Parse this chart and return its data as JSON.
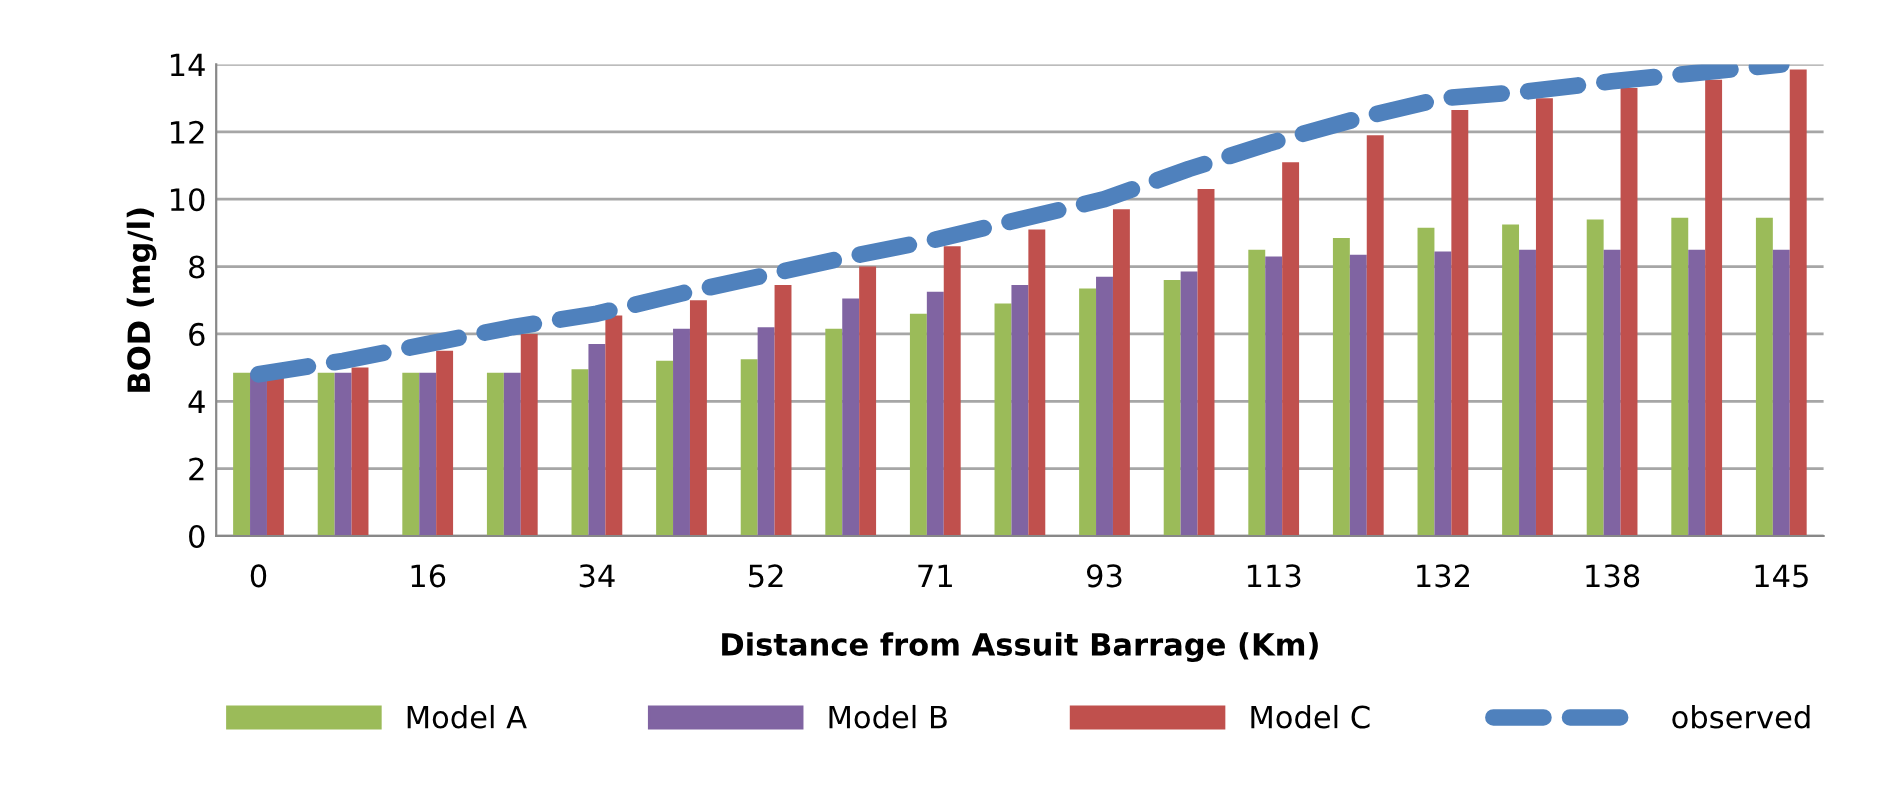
{
  "chart_data": {
    "type": "bar",
    "xlabel": "Distance from Assuit Barrage (Km)",
    "ylabel": "BOD (mg/l)",
    "categories": [
      "0",
      null,
      "16",
      null,
      "34",
      null,
      "52",
      null,
      "71",
      null,
      "93",
      null,
      "113",
      null,
      "132",
      null,
      "138",
      null,
      "145"
    ],
    "series": [
      {
        "name": "Model A",
        "color": "#9bbb59",
        "values": [
          4.85,
          4.85,
          4.85,
          4.85,
          4.95,
          5.2,
          5.25,
          6.15,
          6.6,
          6.9,
          7.35,
          7.6,
          8.5,
          8.85,
          9.15,
          9.25,
          9.4,
          9.45,
          9.45
        ]
      },
      {
        "name": "Model B",
        "color": "#8064a2",
        "values": [
          4.85,
          4.85,
          4.85,
          4.85,
          5.7,
          6.15,
          6.2,
          7.05,
          7.25,
          7.45,
          7.7,
          7.85,
          8.3,
          8.35,
          8.45,
          8.5,
          8.5,
          8.5,
          8.5
        ]
      },
      {
        "name": "Model C",
        "color": "#c0504d",
        "values": [
          4.7,
          5.0,
          5.5,
          6.0,
          6.55,
          7.0,
          7.45,
          8.0,
          8.6,
          9.1,
          9.7,
          10.3,
          11.1,
          11.9,
          12.65,
          13.0,
          13.3,
          13.55,
          13.85
        ]
      },
      {
        "name": "observed",
        "color": "#4f81bd",
        "type": "line",
        "line_style": "dashed",
        "values": [
          4.8,
          5.2,
          5.7,
          6.2,
          6.6,
          7.2,
          7.75,
          8.3,
          8.8,
          9.4,
          10.0,
          10.9,
          11.7,
          12.4,
          13.0,
          13.2,
          13.5,
          13.75,
          14.0
        ]
      }
    ],
    "ylim": [
      0,
      14
    ],
    "yticks": [
      0,
      2,
      4,
      6,
      8,
      10,
      12,
      14
    ],
    "grid": "y",
    "legend": "bottom"
  }
}
